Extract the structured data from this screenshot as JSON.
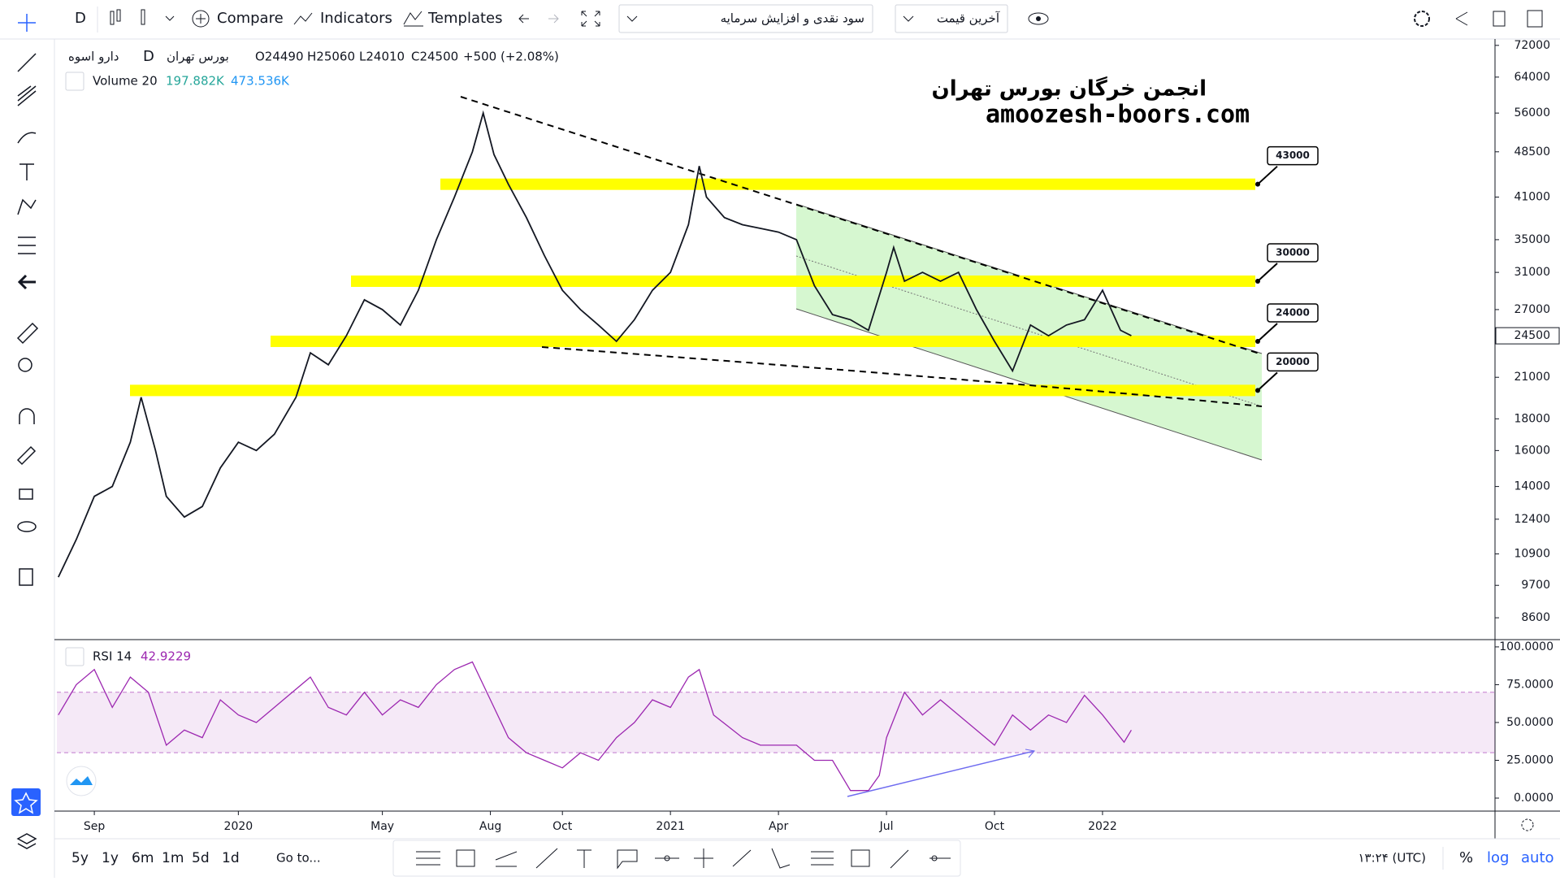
{
  "toolbar": {
    "interval": "D",
    "compare": "Compare",
    "indicators": "Indicators",
    "templates": "Templates",
    "dividends": "سود نقدی و افزایش سرمایه",
    "price_type": "آخرین قیمت"
  },
  "legend": {
    "symbol": "دارو اسوه",
    "interval": "D",
    "exchange": "بورس تهران",
    "ohlc": [
      "O24490",
      "H25060",
      "L24010",
      "C24500"
    ],
    "change": "+500 (+2.08%)",
    "volume_title": "Volume 20",
    "volume_value": "197.882K",
    "volume_ma": "473.536K"
  },
  "watermark": {
    "line1": "انجمن خرگان بورس تهران",
    "line2": "amoozesh-boors.com"
  },
  "bottom_bar": {
    "ranges": [
      "5y",
      "1y",
      "6m",
      "1m",
      "5d",
      "1d"
    ],
    "goto": "Go to...",
    "clock": "۱۳:۲۴ (UTC)",
    "percent": "%",
    "log": "log",
    "auto": "auto"
  },
  "chart_data": {
    "type": "line",
    "color": "#131722",
    "log_scale": true,
    "grid": false,
    "x": [
      0,
      0.5,
      1,
      1.5,
      2,
      2.3,
      2.7,
      3,
      3.5,
      4,
      4.5,
      5,
      5.5,
      6,
      6.6,
      7,
      7.5,
      8,
      8.5,
      9,
      9.5,
      10,
      10.5,
      11,
      11.5,
      11.8,
      12.1,
      12.5,
      13,
      13.5,
      14,
      14.5,
      15,
      15.5,
      16,
      16.5,
      17,
      17.5,
      17.8,
      18,
      18.5,
      19,
      19.5,
      20,
      20.5,
      21,
      21.5,
      22,
      22.5,
      23,
      23.2,
      23.5,
      24,
      24.5,
      25,
      25.5,
      26,
      26.5,
      27,
      27.5,
      28,
      28.5,
      29,
      29.5,
      29.8
    ],
    "values": [
      10000,
      11500,
      13500,
      14000,
      16500,
      19500,
      16000,
      13500,
      12500,
      13000,
      15000,
      16500,
      16000,
      17000,
      19500,
      23000,
      22000,
      24500,
      28000,
      27000,
      25500,
      29000,
      35000,
      41000,
      48500,
      56000,
      48000,
      43000,
      38000,
      33000,
      29000,
      27000,
      25500,
      24000,
      26000,
      29000,
      31000,
      37000,
      46000,
      41000,
      38000,
      37000,
      36500,
      36000,
      35000,
      29500,
      26500,
      26000,
      25000,
      31000,
      34000,
      30000,
      31000,
      30000,
      31000,
      27000,
      24000,
      21500,
      25500,
      24500,
      25500,
      26000,
      29000,
      25000,
      24500
    ],
    "xlim": [
      -0.04,
      39.9
    ],
    "xticks": [
      {
        "value": 1,
        "label": "Sep"
      },
      {
        "value": 5,
        "label": "2020"
      },
      {
        "value": 9,
        "label": "May"
      },
      {
        "value": 12,
        "label": "Aug"
      },
      {
        "value": 14,
        "label": "Oct"
      },
      {
        "value": 17,
        "label": "2021"
      },
      {
        "value": 20,
        "label": "Apr"
      },
      {
        "value": 23,
        "label": "Jul"
      },
      {
        "value": 26,
        "label": "Oct"
      },
      {
        "value": 29,
        "label": "2022"
      }
    ],
    "ylim": [
      7930,
      73500
    ],
    "yticks": [
      72000,
      64000,
      56000,
      48500,
      41000,
      35000,
      31000,
      27000,
      21000,
      18000,
      16000,
      14000,
      12400,
      10900,
      9700,
      8600
    ],
    "last_price": 24500,
    "levels": [
      43000,
      30000,
      24000,
      20000
    ],
    "level_color": "#ffff00",
    "rsi": {
      "title": "RSI 14",
      "last": 42.9229,
      "color": "#9c27b0",
      "band": [
        30,
        70
      ],
      "band_color": "#9c27b0",
      "x": [
        0,
        0.5,
        1,
        1.5,
        2,
        2.5,
        3,
        3.5,
        4,
        4.5,
        5,
        5.5,
        6,
        6.5,
        7,
        7.5,
        8,
        8.5,
        9,
        9.5,
        10,
        10.5,
        11,
        11.5,
        12,
        12.5,
        13,
        13.5,
        14,
        14.5,
        15,
        15.5,
        16,
        16.5,
        17,
        17.5,
        17.8,
        18.2,
        19,
        19.5,
        20,
        20.5,
        21,
        21.5,
        22,
        22.5,
        22.8,
        23,
        23.5,
        24,
        24.5,
        25,
        25.5,
        26,
        26.5,
        27,
        27.5,
        28,
        28.5,
        29,
        29.6,
        29.8
      ],
      "values": [
        55,
        75,
        85,
        60,
        80,
        70,
        35,
        45,
        40,
        65,
        55,
        50,
        60,
        70,
        80,
        60,
        55,
        70,
        55,
        65,
        60,
        75,
        85,
        90,
        65,
        40,
        30,
        25,
        20,
        30,
        25,
        40,
        50,
        65,
        60,
        80,
        85,
        55,
        40,
        35,
        35,
        35,
        25,
        25,
        5,
        5,
        15,
        40,
        70,
        55,
        65,
        55,
        45,
        35,
        55,
        45,
        55,
        50,
        68,
        55,
        37,
        45
      ],
      "ylim": [
        -8.6,
        104.8
      ],
      "yticks": [
        {
          "value": 100,
          "label": "100.0000"
        },
        {
          "value": 75,
          "label": "75.0000"
        },
        {
          "value": 50,
          "label": "50.0000"
        },
        {
          "value": 25,
          "label": "25.0000"
        },
        {
          "value": 0,
          "label": "0.0000"
        }
      ]
    }
  }
}
